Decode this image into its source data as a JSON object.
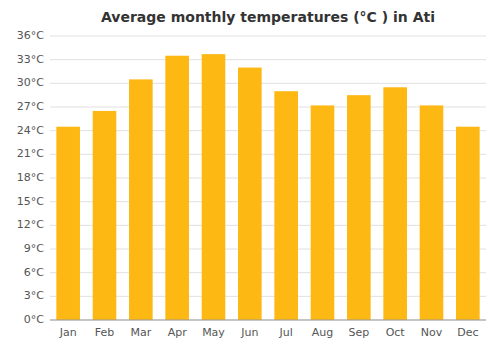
{
  "chart_data": {
    "type": "bar",
    "title": "Average monthly temperatures (°C ) in Ati",
    "categories": [
      "Jan",
      "Feb",
      "Mar",
      "Apr",
      "May",
      "Jun",
      "Jul",
      "Aug",
      "Sep",
      "Oct",
      "Nov",
      "Dec"
    ],
    "values": [
      24.5,
      26.5,
      30.5,
      33.5,
      33.7,
      32.0,
      29.0,
      27.2,
      28.5,
      29.5,
      27.2,
      24.5
    ],
    "color": "#FDB813",
    "ylim": [
      0,
      36
    ],
    "yticks": [
      {
        "value": 0,
        "label": "0°C"
      },
      {
        "value": 3,
        "label": "3°C"
      },
      {
        "value": 6,
        "label": "6°C"
      },
      {
        "value": 9,
        "label": "9°C"
      },
      {
        "value": 12,
        "label": "12°C"
      },
      {
        "value": 15,
        "label": "15°C"
      },
      {
        "value": 18,
        "label": "18°C"
      },
      {
        "value": 21,
        "label": "21°C"
      },
      {
        "value": 24,
        "label": "24°C"
      },
      {
        "value": 27,
        "label": "27°C"
      },
      {
        "value": 30,
        "label": "30°C"
      },
      {
        "value": 33,
        "label": "33°C"
      },
      {
        "value": 36,
        "label": "36°C"
      }
    ],
    "grid": true
  }
}
